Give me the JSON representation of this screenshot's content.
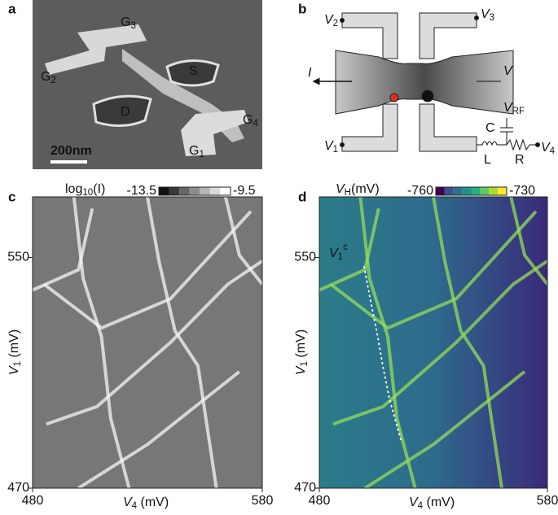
{
  "panels": [
    {
      "label": "a",
      "annotations": [
        {
          "main": "G",
          "sub": "3"
        },
        {
          "main": "G",
          "sub": "2"
        },
        {
          "main": "S"
        },
        {
          "main": "D"
        },
        {
          "main": "G",
          "sub": "4"
        },
        {
          "main": "G",
          "sub": "1"
        }
      ],
      "scale_bar": "200nm"
    },
    {
      "label": "b",
      "annotations": [
        {
          "main": "V",
          "sub": "2"
        },
        {
          "main": "V",
          "sub": "3"
        },
        {
          "main": "I"
        },
        {
          "main": "V"
        },
        {
          "main": "V",
          "sub": "RF"
        },
        {
          "main": "C"
        },
        {
          "main": "V",
          "sub": "1"
        },
        {
          "main": "L"
        },
        {
          "main": "R"
        },
        {
          "main": "V",
          "sub": "4"
        }
      ]
    },
    {
      "label": "c",
      "colorbar": {
        "label": {
          "main": "log",
          "sub": "10",
          "rest": "(I)"
        },
        "range": [
          -13.5,
          -9.5
        ],
        "colors": [
          "#111111",
          "#3a3a3a",
          "#666666",
          "#8c8c8c",
          "#b4b4b4",
          "#dadada",
          "#ffffff"
        ]
      },
      "xlabel": {
        "main": "V",
        "sub": "4",
        "rest": " (mV)"
      },
      "ylabel": {
        "main": "V",
        "sub": "1",
        "rest": " (mV)"
      },
      "xlim": [
        480,
        580
      ],
      "ylim": [
        470,
        571
      ],
      "xticks": [
        480,
        580
      ],
      "yticks": [
        470,
        550
      ]
    },
    {
      "label": "d",
      "colorbar": {
        "label": {
          "main": "V",
          "sub": "H",
          "rest": "(mV)"
        },
        "range": [
          -760,
          -730
        ],
        "colors": [
          "#440154",
          "#3b528b",
          "#2c728e",
          "#21918c",
          "#28ae80",
          "#5ec962",
          "#addc30",
          "#fde725"
        ]
      },
      "xlabel": {
        "main": "V",
        "sub": "4",
        "rest": " (mV)"
      },
      "ylabel": {
        "main": "V",
        "sub": "1",
        "rest": " (mV)"
      },
      "xlim": [
        480,
        580
      ],
      "ylim": [
        470,
        571
      ],
      "xticks": [
        480,
        580
      ],
      "yticks": [
        470,
        550
      ],
      "annotation": {
        "main": "V",
        "sub": "1",
        "sup": "c"
      }
    }
  ]
}
